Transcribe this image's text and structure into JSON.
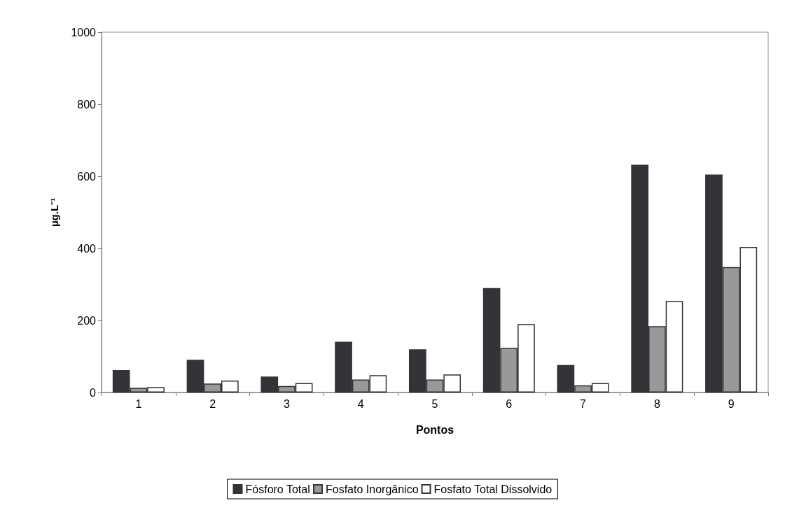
{
  "chart_data": {
    "type": "bar",
    "xlabel": "Pontos",
    "ylabel": "µg.L⁻¹",
    "categories": [
      "1",
      "2",
      "3",
      "4",
      "5",
      "6",
      "7",
      "8",
      "9"
    ],
    "series": [
      {
        "name": "Fósforo Total",
        "color": "#333338",
        "values": [
          62,
          91,
          44,
          141,
          120,
          290,
          76,
          632,
          605
        ]
      },
      {
        "name": "Fosfato Inorgânico",
        "color": "#999999",
        "values": [
          13,
          25,
          18,
          36,
          36,
          124,
          20,
          184,
          348
        ]
      },
      {
        "name": "Fosfato Total Dissolvido",
        "color": "#ffffff",
        "values": [
          15,
          33,
          26,
          48,
          50,
          190,
          26,
          254,
          404
        ]
      }
    ],
    "ylim": [
      0,
      1000
    ],
    "yticks": [
      0,
      200,
      400,
      600,
      800,
      1000
    ],
    "grid": false,
    "legend": "bottom"
  }
}
